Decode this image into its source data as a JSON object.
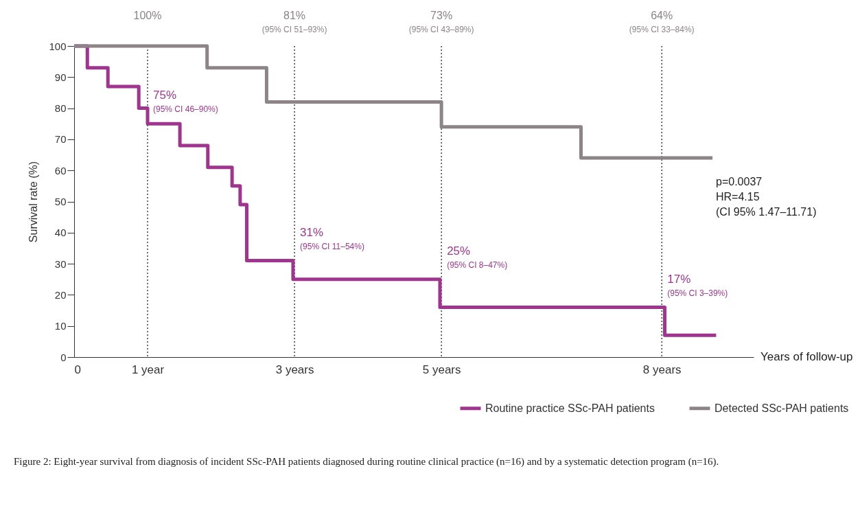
{
  "chart_data": {
    "type": "step",
    "title": "Figure 2: Eight-year survival from diagnosis of incident SSc-PAH patients diagnosed during routine clinical practice (n=16) and by a systematic detection program (n=16).",
    "xlabel": "Years of follow-up",
    "ylabel": "Survival rate (%)",
    "xlim": [
      0,
      9.25
    ],
    "xticks": [
      0,
      {
        "value": 1,
        "label": "1 year"
      },
      {
        "value": 3,
        "label": "3 years"
      },
      {
        "value": 5,
        "label": "5 years"
      },
      {
        "value": 8,
        "label": "8 years"
      }
    ],
    "ylim": [
      0,
      100
    ],
    "yticks": [
      0,
      10,
      20,
      30,
      40,
      50,
      60,
      70,
      80,
      90,
      100
    ],
    "series": [
      {
        "name": "Routine practice SSc-PAH patients",
        "color": "#a0358f",
        "x": [
          0,
          0.18,
          0.46,
          0.88,
          1.0,
          1.44,
          1.82,
          2.15,
          2.26,
          2.35,
          2.98,
          4.98,
          8.04,
          8.74
        ],
        "values": [
          100,
          93,
          87,
          80,
          75,
          68,
          61,
          55,
          49,
          31,
          25,
          16,
          7,
          7
        ]
      },
      {
        "name": "Detected SSc-PAH patients",
        "color": "#8c8486",
        "x": [
          0,
          1.81,
          2.62,
          5.0,
          6.9,
          8.69
        ],
        "values": [
          100,
          93,
          82,
          74,
          64,
          64
        ]
      }
    ],
    "ref_lines": [
      {
        "axis": "x",
        "value": 1,
        "label": "100%",
        "line_style": "dotted",
        "color": "#222222"
      },
      {
        "axis": "x",
        "value": 3,
        "label": "81% (95% CI 51–93%)",
        "line_style": "dotted",
        "color": "#222222"
      },
      {
        "axis": "x",
        "value": 5,
        "label": "73% (95% CI 43–89%)",
        "line_style": "dotted",
        "color": "#222222"
      },
      {
        "axis": "x",
        "value": 8,
        "label": "64% (95% CI 33–84%)",
        "line_style": "dotted",
        "color": "#222222"
      }
    ],
    "annotations": [
      {
        "text": "75% (95% CI 46–90%)",
        "x": 1,
        "y": 75
      },
      {
        "text": "31% (95% CI 11–54%)",
        "x": 3,
        "y": 31
      },
      {
        "text": "25% (95% CI 8–47%)",
        "x": 5,
        "y": 25
      },
      {
        "text": "17% (95% CI 3–39%)",
        "x": 8,
        "y": 16
      },
      "p=0.0037",
      "HR=4.15",
      "(CI 95% 1.47–11.71)"
    ],
    "grid": false,
    "legend": "bottom",
    "line_style": "solid"
  }
}
